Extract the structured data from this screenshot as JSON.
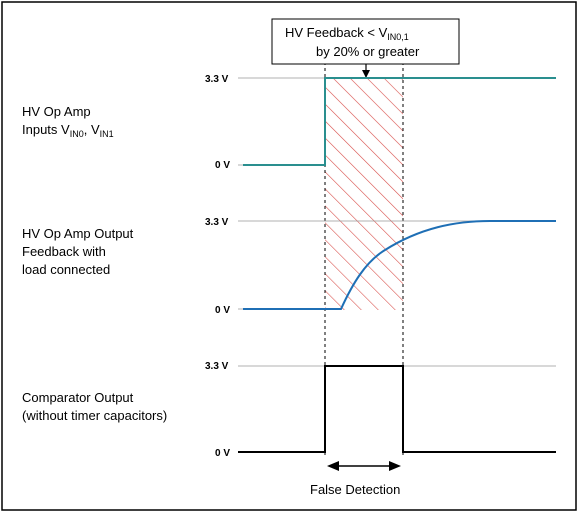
{
  "callout": {
    "line1_main": "HV Feedback < V",
    "line1_sub": "IN0,1",
    "line2": "by 20% or greater"
  },
  "signals": [
    {
      "label_lines": [
        {
          "main": "HV Op Amp",
          "subs": []
        },
        {
          "main": "Inputs V",
          "subs": [
            {
              "sub": "IN0",
              "after": ", V"
            },
            {
              "sub": "IN1",
              "after": ""
            }
          ]
        }
      ],
      "high_label": "3.3 V",
      "low_label": "0 V",
      "color": "#2a8f8f"
    },
    {
      "label_lines": [
        {
          "main": "HV Op Amp Output",
          "subs": []
        },
        {
          "main": "Feedback with",
          "subs": []
        },
        {
          "main": "load connected",
          "subs": []
        }
      ],
      "high_label": "3.3 V",
      "low_label": "0 V",
      "color": "#1f6fb5"
    },
    {
      "label_lines": [
        {
          "main": "Comparator Output",
          "subs": []
        },
        {
          "main": "(without timer capacitors)",
          "subs": []
        }
      ],
      "high_label": "3.3 V",
      "low_label": "0 V",
      "color": "#000000"
    }
  ],
  "false_detection_label": "False Detection",
  "hatch_color": "#d9534f"
}
